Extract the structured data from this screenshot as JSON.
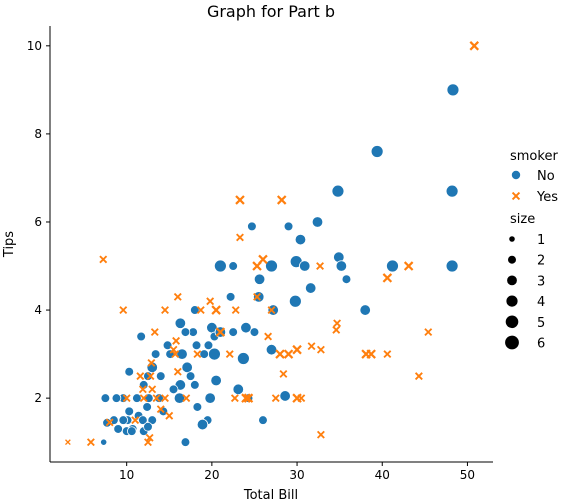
{
  "chart_data": {
    "type": "scatter",
    "title": "Graph for Part b",
    "xlabel": "Total Bill",
    "ylabel": "Tips",
    "xlim": [
      1.0,
      53.0
    ],
    "ylim": [
      0.55,
      10.45
    ],
    "xticks": [
      10,
      20,
      30,
      40,
      50
    ],
    "yticks": [
      2,
      4,
      6,
      8,
      10
    ],
    "grid": false,
    "legend_position": "right",
    "legend": {
      "hue_title": "smoker",
      "hue_entries": [
        {
          "label": "No",
          "color": "#1f77b4",
          "marker": "circle"
        },
        {
          "label": "Yes",
          "color": "#ff7f0e",
          "marker": "x"
        }
      ],
      "size_title": "size",
      "size_entries": [
        "1",
        "2",
        "3",
        "4",
        "5",
        "6"
      ]
    },
    "series": [
      {
        "name": "No",
        "color": "#1f77b4",
        "marker": "circle",
        "points": [
          {
            "x": 48.3,
            "y": 9.0,
            "size": 4
          },
          {
            "x": 39.4,
            "y": 7.6,
            "size": 4
          },
          {
            "x": 48.2,
            "y": 6.7,
            "size": 4
          },
          {
            "x": 34.8,
            "y": 6.7,
            "size": 4
          },
          {
            "x": 32.4,
            "y": 6.0,
            "size": 3
          },
          {
            "x": 29.0,
            "y": 5.9,
            "size": 2
          },
          {
            "x": 24.7,
            "y": 5.9,
            "size": 2
          },
          {
            "x": 30.4,
            "y": 5.6,
            "size": 3
          },
          {
            "x": 27.0,
            "y": 5.0,
            "size": 4
          },
          {
            "x": 21.0,
            "y": 5.0,
            "size": 4
          },
          {
            "x": 22.5,
            "y": 5.0,
            "size": 2
          },
          {
            "x": 29.9,
            "y": 5.1,
            "size": 4
          },
          {
            "x": 34.9,
            "y": 5.2,
            "size": 3
          },
          {
            "x": 35.2,
            "y": 5.0,
            "size": 3
          },
          {
            "x": 41.2,
            "y": 5.0,
            "size": 4
          },
          {
            "x": 48.2,
            "y": 5.0,
            "size": 4
          },
          {
            "x": 30.9,
            "y": 5.0,
            "size": 3
          },
          {
            "x": 25.6,
            "y": 4.7,
            "size": 3
          },
          {
            "x": 35.8,
            "y": 4.7,
            "size": 2
          },
          {
            "x": 31.6,
            "y": 4.5,
            "size": 3
          },
          {
            "x": 25.5,
            "y": 4.3,
            "size": 3
          },
          {
            "x": 29.8,
            "y": 4.2,
            "size": 4
          },
          {
            "x": 22.2,
            "y": 4.3,
            "size": 2
          },
          {
            "x": 38.0,
            "y": 4.0,
            "size": 3
          },
          {
            "x": 27.2,
            "y": 4.0,
            "size": 3
          },
          {
            "x": 18.0,
            "y": 4.0,
            "size": 2
          },
          {
            "x": 16.3,
            "y": 3.7,
            "size": 3
          },
          {
            "x": 20.0,
            "y": 3.6,
            "size": 3
          },
          {
            "x": 24.0,
            "y": 3.6,
            "size": 3
          },
          {
            "x": 22.5,
            "y": 3.5,
            "size": 2
          },
          {
            "x": 17.8,
            "y": 3.5,
            "size": 2
          },
          {
            "x": 16.9,
            "y": 3.5,
            "size": 2
          },
          {
            "x": 11.7,
            "y": 3.4,
            "size": 2
          },
          {
            "x": 20.3,
            "y": 3.4,
            "size": 2
          },
          {
            "x": 25.0,
            "y": 3.5,
            "size": 2
          },
          {
            "x": 19.6,
            "y": 3.2,
            "size": 2
          },
          {
            "x": 14.8,
            "y": 3.2,
            "size": 2
          },
          {
            "x": 18.2,
            "y": 3.2,
            "size": 2
          },
          {
            "x": 16.5,
            "y": 3.0,
            "size": 3
          },
          {
            "x": 20.3,
            "y": 3.0,
            "size": 4
          },
          {
            "x": 13.4,
            "y": 3.0,
            "size": 2
          },
          {
            "x": 19.1,
            "y": 3.0,
            "size": 2
          },
          {
            "x": 15.1,
            "y": 3.0,
            "size": 2
          },
          {
            "x": 27.0,
            "y": 3.1,
            "size": 3
          },
          {
            "x": 13.0,
            "y": 2.7,
            "size": 3
          },
          {
            "x": 17.1,
            "y": 2.7,
            "size": 3
          },
          {
            "x": 10.3,
            "y": 2.6,
            "size": 2
          },
          {
            "x": 17.5,
            "y": 2.5,
            "size": 2
          },
          {
            "x": 12.5,
            "y": 2.5,
            "size": 2
          },
          {
            "x": 20.5,
            "y": 2.4,
            "size": 3
          },
          {
            "x": 18.0,
            "y": 2.3,
            "size": 2
          },
          {
            "x": 16.3,
            "y": 2.3,
            "size": 3
          },
          {
            "x": 12.0,
            "y": 2.3,
            "size": 2
          },
          {
            "x": 15.5,
            "y": 2.2,
            "size": 2
          },
          {
            "x": 13.8,
            "y": 2.0,
            "size": 2
          },
          {
            "x": 16.2,
            "y": 2.0,
            "size": 3
          },
          {
            "x": 19.8,
            "y": 2.0,
            "size": 3
          },
          {
            "x": 24.3,
            "y": 2.0,
            "size": 2
          },
          {
            "x": 12.6,
            "y": 2.0,
            "size": 2
          },
          {
            "x": 11.2,
            "y": 2.0,
            "size": 2
          },
          {
            "x": 9.6,
            "y": 2.0,
            "size": 2
          },
          {
            "x": 8.8,
            "y": 2.0,
            "size": 2
          },
          {
            "x": 7.5,
            "y": 2.0,
            "size": 2
          },
          {
            "x": 12.4,
            "y": 1.8,
            "size": 2
          },
          {
            "x": 18.3,
            "y": 1.8,
            "size": 2
          },
          {
            "x": 10.3,
            "y": 1.7,
            "size": 2
          },
          {
            "x": 14.3,
            "y": 1.7,
            "size": 2
          },
          {
            "x": 11.4,
            "y": 1.6,
            "size": 2
          },
          {
            "x": 13.0,
            "y": 1.5,
            "size": 2
          },
          {
            "x": 10.1,
            "y": 1.5,
            "size": 2
          },
          {
            "x": 11.9,
            "y": 1.5,
            "size": 2
          },
          {
            "x": 9.6,
            "y": 1.5,
            "size": 2
          },
          {
            "x": 8.5,
            "y": 1.5,
            "size": 2
          },
          {
            "x": 19.5,
            "y": 1.5,
            "size": 2
          },
          {
            "x": 26.0,
            "y": 1.5,
            "size": 2
          },
          {
            "x": 7.7,
            "y": 1.44,
            "size": 2
          },
          {
            "x": 18.9,
            "y": 1.4,
            "size": 3
          },
          {
            "x": 10.7,
            "y": 1.3,
            "size": 2
          },
          {
            "x": 9.0,
            "y": 1.3,
            "size": 2
          },
          {
            "x": 10.0,
            "y": 1.25,
            "size": 2
          },
          {
            "x": 10.6,
            "y": 1.25,
            "size": 2
          },
          {
            "x": 12.0,
            "y": 1.25,
            "size": 2
          },
          {
            "x": 16.9,
            "y": 1.0,
            "size": 2
          },
          {
            "x": 7.3,
            "y": 1.0,
            "size": 1
          },
          {
            "x": 23.7,
            "y": 2.9,
            "size": 4
          },
          {
            "x": 23.1,
            "y": 2.2,
            "size": 3
          },
          {
            "x": 28.6,
            "y": 2.05,
            "size": 3
          },
          {
            "x": 21.0,
            "y": 3.5,
            "size": 3
          },
          {
            "x": 14.0,
            "y": 2.5,
            "size": 2
          },
          {
            "x": 12.5,
            "y": 1.35,
            "size": 2
          }
        ]
      },
      {
        "name": "Yes",
        "color": "#ff7f0e",
        "marker": "x",
        "points": [
          {
            "x": 50.8,
            "y": 10.0,
            "size": 3
          },
          {
            "x": 23.3,
            "y": 6.5,
            "size": 3
          },
          {
            "x": 28.2,
            "y": 6.5,
            "size": 3
          },
          {
            "x": 23.3,
            "y": 5.65,
            "size": 2
          },
          {
            "x": 7.25,
            "y": 5.15,
            "size": 2
          },
          {
            "x": 26.0,
            "y": 5.15,
            "size": 3
          },
          {
            "x": 25.3,
            "y": 5.0,
            "size": 3
          },
          {
            "x": 32.7,
            "y": 5.0,
            "size": 2
          },
          {
            "x": 43.1,
            "y": 5.0,
            "size": 3
          },
          {
            "x": 40.6,
            "y": 4.73,
            "size": 3
          },
          {
            "x": 25.3,
            "y": 4.3,
            "size": 2
          },
          {
            "x": 16.0,
            "y": 4.3,
            "size": 2
          },
          {
            "x": 19.8,
            "y": 4.2,
            "size": 2
          },
          {
            "x": 9.6,
            "y": 4.0,
            "size": 2
          },
          {
            "x": 14.5,
            "y": 4.0,
            "size": 2
          },
          {
            "x": 18.7,
            "y": 4.0,
            "size": 2
          },
          {
            "x": 20.5,
            "y": 4.0,
            "size": 3
          },
          {
            "x": 22.8,
            "y": 4.0,
            "size": 2
          },
          {
            "x": 27.0,
            "y": 4.0,
            "size": 2
          },
          {
            "x": 34.7,
            "y": 3.7,
            "size": 2
          },
          {
            "x": 45.4,
            "y": 3.5,
            "size": 2
          },
          {
            "x": 34.6,
            "y": 3.55,
            "size": 2
          },
          {
            "x": 13.3,
            "y": 3.5,
            "size": 2
          },
          {
            "x": 21.0,
            "y": 3.5,
            "size": 3
          },
          {
            "x": 15.8,
            "y": 3.3,
            "size": 2
          },
          {
            "x": 26.6,
            "y": 3.4,
            "size": 2
          },
          {
            "x": 31.7,
            "y": 3.18,
            "size": 2
          },
          {
            "x": 15.5,
            "y": 3.1,
            "size": 2
          },
          {
            "x": 30.0,
            "y": 3.1,
            "size": 3
          },
          {
            "x": 32.8,
            "y": 3.1,
            "size": 2
          },
          {
            "x": 28.0,
            "y": 3.0,
            "size": 3
          },
          {
            "x": 29.0,
            "y": 3.0,
            "size": 3
          },
          {
            "x": 38.1,
            "y": 3.0,
            "size": 3
          },
          {
            "x": 38.7,
            "y": 3.0,
            "size": 3
          },
          {
            "x": 40.6,
            "y": 3.0,
            "size": 2
          },
          {
            "x": 15.7,
            "y": 3.0,
            "size": 2
          },
          {
            "x": 18.3,
            "y": 3.0,
            "size": 2
          },
          {
            "x": 22.1,
            "y": 3.0,
            "size": 2
          },
          {
            "x": 12.9,
            "y": 2.8,
            "size": 2
          },
          {
            "x": 16.0,
            "y": 2.6,
            "size": 2
          },
          {
            "x": 28.4,
            "y": 2.55,
            "size": 2
          },
          {
            "x": 12.8,
            "y": 2.5,
            "size": 2
          },
          {
            "x": 44.3,
            "y": 2.5,
            "size": 2
          },
          {
            "x": 13.0,
            "y": 2.2,
            "size": 2
          },
          {
            "x": 11.9,
            "y": 2.2,
            "size": 2
          },
          {
            "x": 14.5,
            "y": 2.0,
            "size": 2
          },
          {
            "x": 17.0,
            "y": 2.0,
            "size": 2
          },
          {
            "x": 13.5,
            "y": 2.0,
            "size": 2
          },
          {
            "x": 12.0,
            "y": 2.0,
            "size": 2
          },
          {
            "x": 10.0,
            "y": 2.0,
            "size": 2
          },
          {
            "x": 22.7,
            "y": 2.0,
            "size": 2
          },
          {
            "x": 24.0,
            "y": 2.0,
            "size": 3
          },
          {
            "x": 24.3,
            "y": 2.0,
            "size": 3
          },
          {
            "x": 27.5,
            "y": 2.0,
            "size": 2
          },
          {
            "x": 30.0,
            "y": 2.0,
            "size": 3
          },
          {
            "x": 30.5,
            "y": 2.0,
            "size": 2
          },
          {
            "x": 15.0,
            "y": 1.6,
            "size": 2
          },
          {
            "x": 11.0,
            "y": 1.5,
            "size": 2
          },
          {
            "x": 8.0,
            "y": 1.45,
            "size": 2
          },
          {
            "x": 12.7,
            "y": 1.1,
            "size": 2
          },
          {
            "x": 12.5,
            "y": 1.0,
            "size": 2
          },
          {
            "x": 32.8,
            "y": 1.17,
            "size": 2
          },
          {
            "x": 5.8,
            "y": 1.0,
            "size": 2
          },
          {
            "x": 3.1,
            "y": 1.0,
            "size": 1
          },
          {
            "x": 14.0,
            "y": 1.75,
            "size": 2
          },
          {
            "x": 11.6,
            "y": 2.5,
            "size": 2
          }
        ]
      }
    ]
  }
}
